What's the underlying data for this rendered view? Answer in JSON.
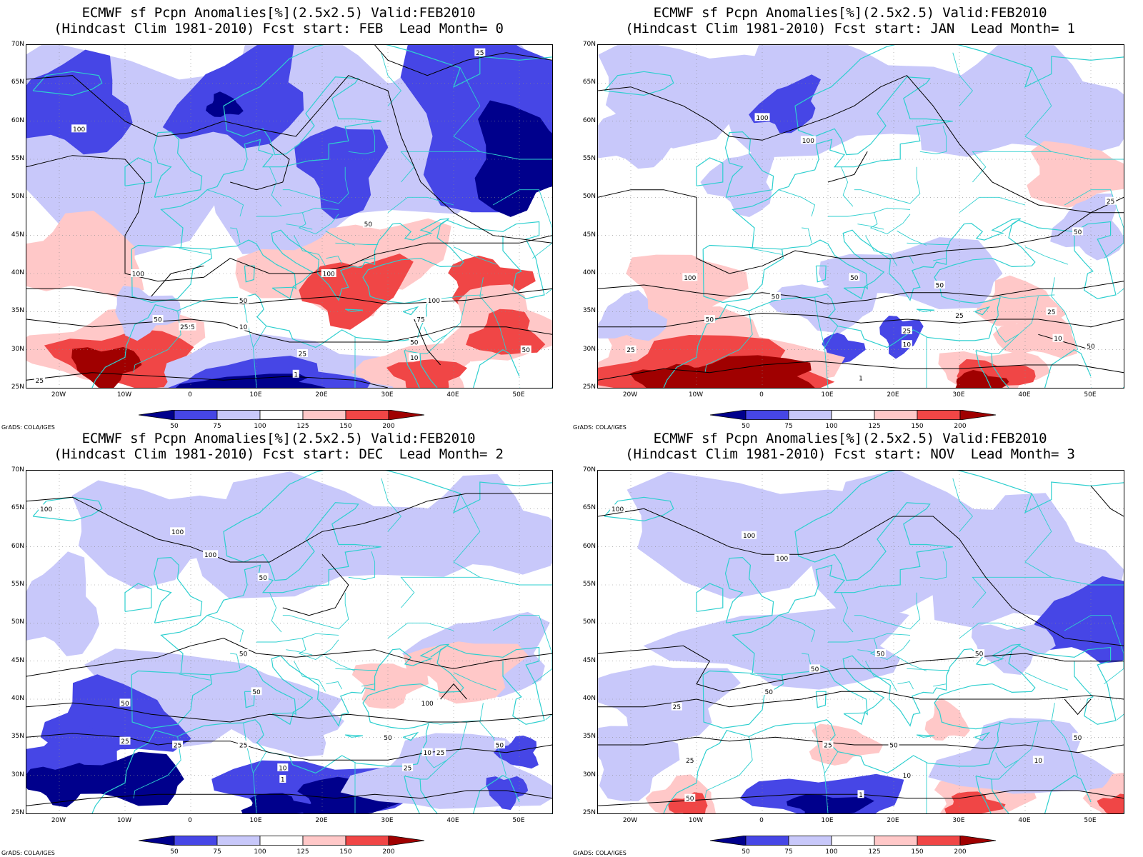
{
  "panels": [
    {
      "title_line1": "ECMWF sf Pcpn Anomalies[%](2.5x2.5) Valid:FEB2010",
      "title_line2": "(Hindcast Clim 1981-2010) Fcst start: FEB  Lead Month= 0",
      "fcst_start": "FEB",
      "lead_month": 0,
      "contour_labels": [
        "25",
        "25",
        "100",
        "100",
        "100",
        "50",
        "50",
        "50",
        "25",
        "10",
        "25",
        "1",
        "100",
        "75",
        "50",
        "10",
        "50",
        "25"
      ]
    },
    {
      "title_line1": "ECMWF sf Pcpn Anomalies[%](2.5x2.5) Valid:FEB2010",
      "title_line2": "(Hindcast Clim 1981-2010) Fcst start: JAN  Lead Month= 1",
      "fcst_start": "JAN",
      "lead_month": 1,
      "contour_labels": [
        "100",
        "100",
        "25",
        "50",
        "100",
        "50",
        "50",
        "50",
        "25",
        "25",
        "10",
        "25",
        "1",
        "25",
        "10",
        "50",
        "50"
      ]
    },
    {
      "title_line1": "ECMWF sf Pcpn Anomalies[%](2.5x2.5) Valid:FEB2010",
      "title_line2": "(Hindcast Clim 1981-2010) Fcst start: DEC  Lead Month= 2",
      "fcst_start": "DEC",
      "lead_month": 2,
      "contour_labels": [
        "100",
        "100",
        "100",
        "50",
        "25",
        "25",
        "50",
        "50",
        "50",
        "25",
        "25",
        "50",
        "10",
        "1",
        "100",
        "50",
        "10",
        "25"
      ]
    },
    {
      "title_line1": "ECMWF sf Pcpn Anomalies[%](2.5x2.5) Valid:FEB2010",
      "title_line2": "(Hindcast Clim 1981-2010) Fcst start: NOV  Lead Month= 3",
      "fcst_start": "NOV",
      "lead_month": 3,
      "contour_labels": [
        "100",
        "100",
        "100",
        "50",
        "50",
        "25",
        "50",
        "50",
        "25",
        "10",
        "1",
        "50",
        "10",
        "25",
        "50",
        "50"
      ]
    }
  ],
  "map": {
    "lat_labels": [
      "70N",
      "65N",
      "60N",
      "55N",
      "50N",
      "45N",
      "40N",
      "35N",
      "30N",
      "25N"
    ],
    "lon_labels": [
      "20W",
      "10W",
      "0",
      "10E",
      "20E",
      "30E",
      "40E",
      "50E"
    ],
    "lat_range": [
      25,
      70
    ],
    "lon_range": [
      -25,
      55
    ]
  },
  "legend": {
    "labels": [
      "50",
      "75",
      "100",
      "125",
      "150",
      "200"
    ],
    "colors": [
      "#00008c",
      "#4646e6",
      "#c8c8fa",
      "#ffffff",
      "#ffc8c8",
      "#f04646",
      "#a00000"
    ]
  },
  "credit": "GrADS: COLA/IGES",
  "colors": {
    "coast": "#2ecfcf",
    "contour": "#000000",
    "grid": "#888888"
  }
}
